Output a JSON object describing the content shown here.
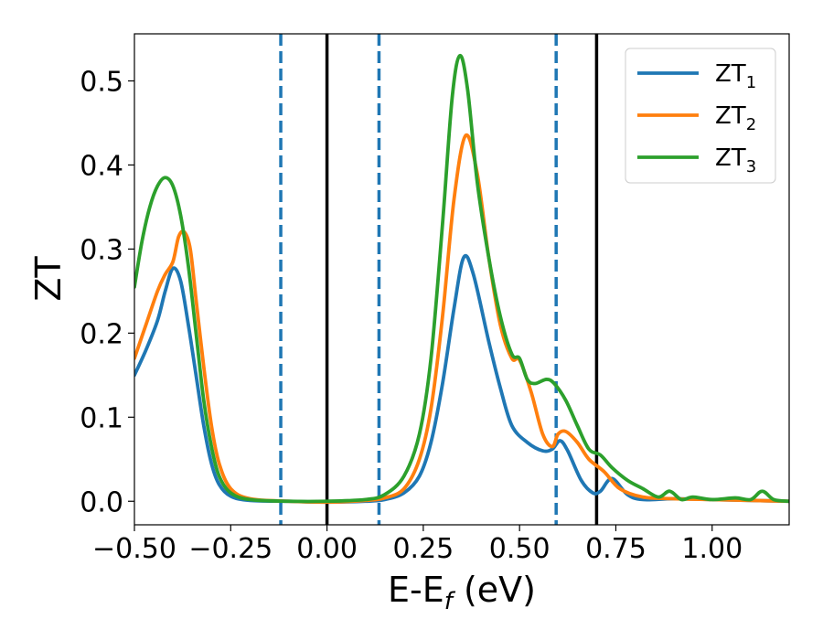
{
  "chart_data": {
    "type": "line",
    "title": "",
    "xlabel": {
      "main": "E-E",
      "sub": "f",
      "unit": " (eV)"
    },
    "ylabel": "ZT",
    "xlim": [
      -0.5,
      1.2
    ],
    "ylim": [
      -0.028,
      0.556
    ],
    "xticks": [
      -0.5,
      -0.25,
      0.0,
      0.25,
      0.5,
      0.75,
      1.0
    ],
    "xtick_labels": [
      "−0.50",
      "−0.25",
      "0.00",
      "0.25",
      "0.50",
      "0.75",
      "1.00"
    ],
    "yticks": [
      0.0,
      0.1,
      0.2,
      0.3,
      0.4,
      0.5
    ],
    "ytick_labels": [
      "0.0",
      "0.1",
      "0.2",
      "0.3",
      "0.4",
      "0.5"
    ],
    "legend_position": "top-right",
    "vlines": [
      {
        "x": -0.12,
        "style": "dashed",
        "color": "#1f77b4"
      },
      {
        "x": 0.0,
        "style": "solid",
        "color": "#000000"
      },
      {
        "x": 0.135,
        "style": "dashed",
        "color": "#1f77b4"
      },
      {
        "x": 0.595,
        "style": "dashed",
        "color": "#1f77b4"
      },
      {
        "x": 0.7,
        "style": "solid",
        "color": "#000000"
      }
    ],
    "series": [
      {
        "name": "ZT",
        "subscript": "1",
        "color": "#1f77b4",
        "points": [
          [
            -0.5,
            0.15
          ],
          [
            -0.47,
            0.18
          ],
          [
            -0.44,
            0.215
          ],
          [
            -0.42,
            0.25
          ],
          [
            -0.4,
            0.277
          ],
          [
            -0.38,
            0.262
          ],
          [
            -0.36,
            0.21
          ],
          [
            -0.34,
            0.15
          ],
          [
            -0.32,
            0.09
          ],
          [
            -0.3,
            0.045
          ],
          [
            -0.28,
            0.02
          ],
          [
            -0.25,
            0.006
          ],
          [
            -0.2,
            0.001
          ],
          [
            -0.1,
            0.0
          ],
          [
            0.0,
            -0.001
          ],
          [
            0.1,
            0.0
          ],
          [
            0.15,
            0.002
          ],
          [
            0.2,
            0.01
          ],
          [
            0.24,
            0.03
          ],
          [
            0.27,
            0.07
          ],
          [
            0.3,
            0.14
          ],
          [
            0.33,
            0.23
          ],
          [
            0.355,
            0.29
          ],
          [
            0.38,
            0.27
          ],
          [
            0.42,
            0.19
          ],
          [
            0.45,
            0.135
          ],
          [
            0.48,
            0.09
          ],
          [
            0.52,
            0.07
          ],
          [
            0.56,
            0.06
          ],
          [
            0.585,
            0.062
          ],
          [
            0.605,
            0.072
          ],
          [
            0.625,
            0.06
          ],
          [
            0.66,
            0.025
          ],
          [
            0.69,
            0.01
          ],
          [
            0.71,
            0.012
          ],
          [
            0.74,
            0.027
          ],
          [
            0.78,
            0.008
          ],
          [
            0.82,
            0.002
          ],
          [
            0.9,
            0.003
          ],
          [
            1.0,
            0.002
          ],
          [
            1.1,
            0.001
          ],
          [
            1.2,
            0.0
          ]
        ]
      },
      {
        "name": "ZT",
        "subscript": "2",
        "color": "#ff7f0e",
        "points": [
          [
            -0.5,
            0.17
          ],
          [
            -0.47,
            0.21
          ],
          [
            -0.44,
            0.25
          ],
          [
            -0.42,
            0.27
          ],
          [
            -0.4,
            0.285
          ],
          [
            -0.385,
            0.315
          ],
          [
            -0.37,
            0.32
          ],
          [
            -0.355,
            0.3
          ],
          [
            -0.34,
            0.24
          ],
          [
            -0.32,
            0.16
          ],
          [
            -0.3,
            0.09
          ],
          [
            -0.28,
            0.045
          ],
          [
            -0.25,
            0.015
          ],
          [
            -0.2,
            0.003
          ],
          [
            -0.1,
            0.0
          ],
          [
            0.0,
            -0.001
          ],
          [
            0.1,
            0.001
          ],
          [
            0.15,
            0.004
          ],
          [
            0.2,
            0.015
          ],
          [
            0.24,
            0.05
          ],
          [
            0.27,
            0.11
          ],
          [
            0.3,
            0.22
          ],
          [
            0.33,
            0.36
          ],
          [
            0.36,
            0.435
          ],
          [
            0.39,
            0.39
          ],
          [
            0.42,
            0.29
          ],
          [
            0.45,
            0.21
          ],
          [
            0.48,
            0.17
          ],
          [
            0.5,
            0.168
          ],
          [
            0.53,
            0.13
          ],
          [
            0.56,
            0.08
          ],
          [
            0.585,
            0.065
          ],
          [
            0.6,
            0.08
          ],
          [
            0.62,
            0.083
          ],
          [
            0.65,
            0.07
          ],
          [
            0.68,
            0.05
          ],
          [
            0.72,
            0.035
          ],
          [
            0.76,
            0.015
          ],
          [
            0.82,
            0.005
          ],
          [
            0.9,
            0.003
          ],
          [
            1.0,
            0.002
          ],
          [
            1.1,
            0.001
          ],
          [
            1.2,
            0.0
          ]
        ]
      },
      {
        "name": "ZT",
        "subscript": "3",
        "color": "#2ca02c",
        "points": [
          [
            -0.5,
            0.255
          ],
          [
            -0.48,
            0.31
          ],
          [
            -0.46,
            0.35
          ],
          [
            -0.44,
            0.375
          ],
          [
            -0.42,
            0.385
          ],
          [
            -0.4,
            0.375
          ],
          [
            -0.38,
            0.34
          ],
          [
            -0.36,
            0.28
          ],
          [
            -0.34,
            0.2
          ],
          [
            -0.32,
            0.12
          ],
          [
            -0.3,
            0.065
          ],
          [
            -0.28,
            0.03
          ],
          [
            -0.25,
            0.01
          ],
          [
            -0.2,
            0.002
          ],
          [
            -0.1,
            0.0
          ],
          [
            0.0,
            0.0
          ],
          [
            0.1,
            0.002
          ],
          [
            0.15,
            0.008
          ],
          [
            0.2,
            0.03
          ],
          [
            0.24,
            0.08
          ],
          [
            0.27,
            0.17
          ],
          [
            0.3,
            0.33
          ],
          [
            0.325,
            0.48
          ],
          [
            0.345,
            0.53
          ],
          [
            0.365,
            0.49
          ],
          [
            0.39,
            0.38
          ],
          [
            0.42,
            0.29
          ],
          [
            0.45,
            0.22
          ],
          [
            0.48,
            0.175
          ],
          [
            0.5,
            0.17
          ],
          [
            0.52,
            0.145
          ],
          [
            0.54,
            0.14
          ],
          [
            0.57,
            0.145
          ],
          [
            0.59,
            0.14
          ],
          [
            0.62,
            0.12
          ],
          [
            0.65,
            0.09
          ],
          [
            0.68,
            0.062
          ],
          [
            0.71,
            0.055
          ],
          [
            0.74,
            0.04
          ],
          [
            0.78,
            0.025
          ],
          [
            0.82,
            0.015
          ],
          [
            0.86,
            0.005
          ],
          [
            0.89,
            0.012
          ],
          [
            0.92,
            0.002
          ],
          [
            0.95,
            0.005
          ],
          [
            1.0,
            0.002
          ],
          [
            1.06,
            0.004
          ],
          [
            1.1,
            0.002
          ],
          [
            1.13,
            0.012
          ],
          [
            1.16,
            0.002
          ],
          [
            1.2,
            0.0
          ]
        ]
      }
    ]
  }
}
